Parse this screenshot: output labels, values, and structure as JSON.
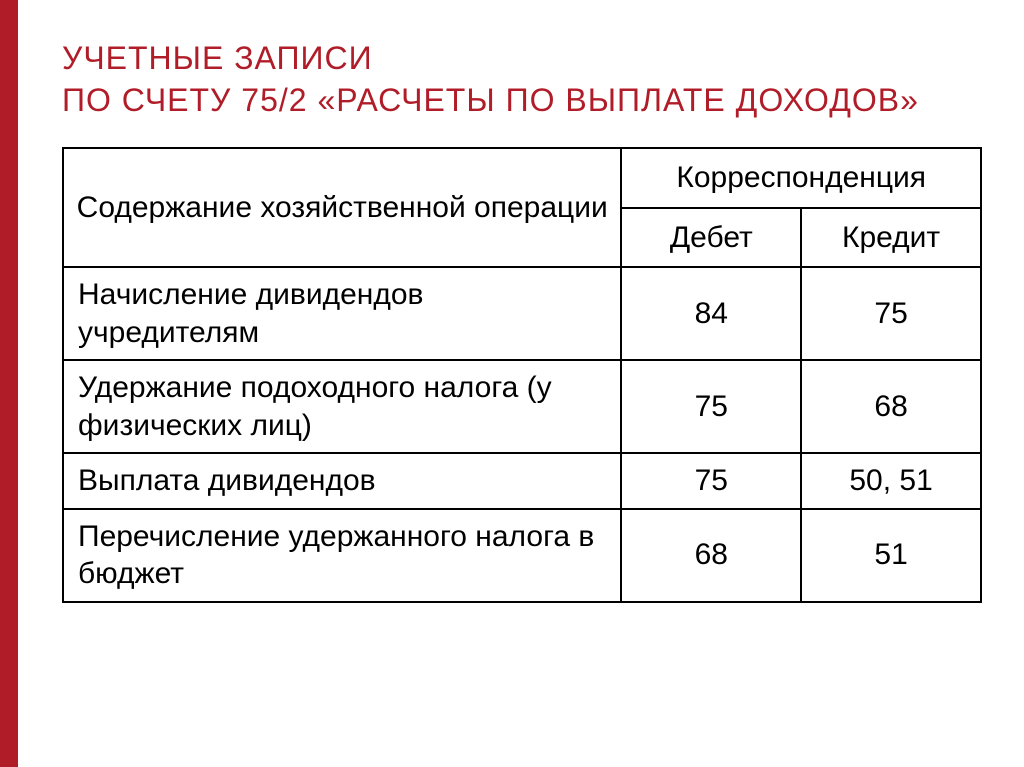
{
  "accent_color": "#b01d28",
  "title_color": "#b01d28",
  "text_color": "#000000",
  "title_line1": "УЧЕТНЫЕ ЗАПИСИ",
  "title_line2": "ПО СЧЕТУ 75/2 «РАСЧЕТЫ ПО ВЫПЛАТЕ ДОХОДОВ»",
  "table": {
    "header_operation": "Содержание хозяйственной операции",
    "header_corr": "Корреспонденция",
    "header_debit": "Дебет",
    "header_credit": "Кредит",
    "rows": [
      {
        "op": "Начисление дивидендов учредителям",
        "debit": "84",
        "credit": "75"
      },
      {
        "op": "Удержание подоходного налога (у физических лиц)",
        "debit": "75",
        "credit": "68"
      },
      {
        "op": "Выплата дивидендов",
        "debit": "75",
        "credit": "50, 51"
      },
      {
        "op": "Перечисление удержанного налога в бюджет",
        "debit": "68",
        "credit": "51"
      }
    ]
  }
}
